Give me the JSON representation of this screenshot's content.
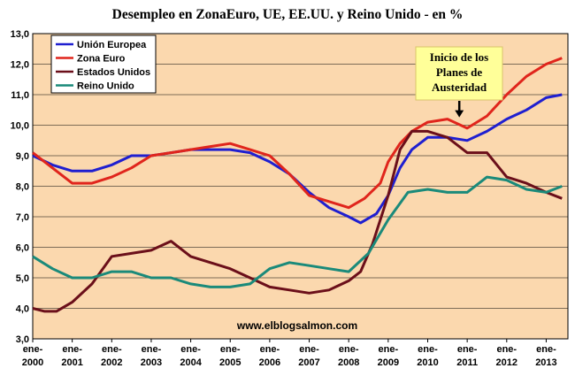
{
  "chart_data": {
    "type": "line",
    "title": "Desempleo en ZonaEuro, UE, EE.UU. y Reino Unido - en %",
    "xlabel": "",
    "ylabel": "",
    "ylim": [
      3.0,
      13.0
    ],
    "y_ticks": [
      "3,0",
      "4,0",
      "5,0",
      "6,0",
      "7,0",
      "8,0",
      "9,0",
      "10,0",
      "11,0",
      "12,0",
      "13,0"
    ],
    "x_ticks": [
      {
        "line1": "ene-",
        "line2": "2000"
      },
      {
        "line1": "ene-",
        "line2": "2001"
      },
      {
        "line1": "ene-",
        "line2": "2002"
      },
      {
        "line1": "ene-",
        "line2": "2003"
      },
      {
        "line1": "ene-",
        "line2": "2004"
      },
      {
        "line1": "ene-",
        "line2": "2005"
      },
      {
        "line1": "ene-",
        "line2": "2006"
      },
      {
        "line1": "ene-",
        "line2": "2007"
      },
      {
        "line1": "ene-",
        "line2": "2008"
      },
      {
        "line1": "ene-",
        "line2": "2009"
      },
      {
        "line1": "ene-",
        "line2": "2010"
      },
      {
        "line1": "ene-",
        "line2": "2011"
      },
      {
        "line1": "ene-",
        "line2": "2012"
      },
      {
        "line1": "ene-",
        "line2": "2013"
      }
    ],
    "grid": true,
    "legend_position": "top-left",
    "series": [
      {
        "name": "Unión Europea",
        "color": "#1f1fd0",
        "points": [
          [
            2000.0,
            9.0
          ],
          [
            2000.5,
            8.7
          ],
          [
            2001.0,
            8.5
          ],
          [
            2001.5,
            8.5
          ],
          [
            2002.0,
            8.7
          ],
          [
            2002.5,
            9.0
          ],
          [
            2003.0,
            9.0
          ],
          [
            2003.5,
            9.1
          ],
          [
            2004.0,
            9.2
          ],
          [
            2004.5,
            9.2
          ],
          [
            2005.0,
            9.2
          ],
          [
            2005.5,
            9.1
          ],
          [
            2006.0,
            8.8
          ],
          [
            2006.5,
            8.4
          ],
          [
            2007.0,
            7.8
          ],
          [
            2007.5,
            7.3
          ],
          [
            2008.0,
            7.0
          ],
          [
            2008.3,
            6.8
          ],
          [
            2008.7,
            7.1
          ],
          [
            2009.0,
            7.7
          ],
          [
            2009.3,
            8.6
          ],
          [
            2009.6,
            9.2
          ],
          [
            2010.0,
            9.6
          ],
          [
            2010.5,
            9.6
          ],
          [
            2011.0,
            9.5
          ],
          [
            2011.5,
            9.8
          ],
          [
            2012.0,
            10.2
          ],
          [
            2012.5,
            10.5
          ],
          [
            2013.0,
            10.9
          ],
          [
            2013.4,
            11.0
          ]
        ]
      },
      {
        "name": "Zona Euro",
        "color": "#e0251c",
        "points": [
          [
            2000.0,
            9.1
          ],
          [
            2000.5,
            8.6
          ],
          [
            2001.0,
            8.1
          ],
          [
            2001.5,
            8.1
          ],
          [
            2002.0,
            8.3
          ],
          [
            2002.5,
            8.6
          ],
          [
            2003.0,
            9.0
          ],
          [
            2003.5,
            9.1
          ],
          [
            2004.0,
            9.2
          ],
          [
            2004.5,
            9.3
          ],
          [
            2005.0,
            9.4
          ],
          [
            2005.5,
            9.2
          ],
          [
            2006.0,
            9.0
          ],
          [
            2006.5,
            8.4
          ],
          [
            2007.0,
            7.7
          ],
          [
            2007.5,
            7.5
          ],
          [
            2008.0,
            7.3
          ],
          [
            2008.4,
            7.6
          ],
          [
            2008.8,
            8.1
          ],
          [
            2009.0,
            8.8
          ],
          [
            2009.3,
            9.4
          ],
          [
            2009.6,
            9.8
          ],
          [
            2010.0,
            10.1
          ],
          [
            2010.5,
            10.2
          ],
          [
            2011.0,
            9.9
          ],
          [
            2011.5,
            10.3
          ],
          [
            2012.0,
            11.0
          ],
          [
            2012.5,
            11.6
          ],
          [
            2013.0,
            12.0
          ],
          [
            2013.4,
            12.2
          ]
        ]
      },
      {
        "name": "Estados Unidos",
        "color": "#6b0f1a",
        "points": [
          [
            2000.0,
            4.0
          ],
          [
            2000.3,
            3.9
          ],
          [
            2000.6,
            3.9
          ],
          [
            2001.0,
            4.2
          ],
          [
            2001.5,
            4.8
          ],
          [
            2002.0,
            5.7
          ],
          [
            2002.5,
            5.8
          ],
          [
            2003.0,
            5.9
          ],
          [
            2003.5,
            6.2
          ],
          [
            2004.0,
            5.7
          ],
          [
            2004.5,
            5.5
          ],
          [
            2005.0,
            5.3
          ],
          [
            2005.5,
            5.0
          ],
          [
            2006.0,
            4.7
          ],
          [
            2006.5,
            4.6
          ],
          [
            2007.0,
            4.5
          ],
          [
            2007.5,
            4.6
          ],
          [
            2008.0,
            4.9
          ],
          [
            2008.3,
            5.2
          ],
          [
            2008.6,
            6.1
          ],
          [
            2009.0,
            7.7
          ],
          [
            2009.3,
            9.2
          ],
          [
            2009.6,
            9.8
          ],
          [
            2010.0,
            9.8
          ],
          [
            2010.5,
            9.6
          ],
          [
            2011.0,
            9.1
          ],
          [
            2011.5,
            9.1
          ],
          [
            2012.0,
            8.3
          ],
          [
            2012.5,
            8.1
          ],
          [
            2013.0,
            7.8
          ],
          [
            2013.4,
            7.6
          ]
        ]
      },
      {
        "name": "Reino Unido",
        "color": "#1a8a7a",
        "points": [
          [
            2000.0,
            5.7
          ],
          [
            2000.5,
            5.3
          ],
          [
            2001.0,
            5.0
          ],
          [
            2001.5,
            5.0
          ],
          [
            2002.0,
            5.2
          ],
          [
            2002.5,
            5.2
          ],
          [
            2003.0,
            5.0
          ],
          [
            2003.5,
            5.0
          ],
          [
            2004.0,
            4.8
          ],
          [
            2004.5,
            4.7
          ],
          [
            2005.0,
            4.7
          ],
          [
            2005.5,
            4.8
          ],
          [
            2006.0,
            5.3
          ],
          [
            2006.5,
            5.5
          ],
          [
            2007.0,
            5.4
          ],
          [
            2007.5,
            5.3
          ],
          [
            2008.0,
            5.2
          ],
          [
            2008.5,
            5.8
          ],
          [
            2009.0,
            6.9
          ],
          [
            2009.5,
            7.8
          ],
          [
            2010.0,
            7.9
          ],
          [
            2010.5,
            7.8
          ],
          [
            2011.0,
            7.8
          ],
          [
            2011.5,
            8.3
          ],
          [
            2012.0,
            8.2
          ],
          [
            2012.5,
            7.9
          ],
          [
            2013.0,
            7.8
          ],
          [
            2013.4,
            8.0
          ]
        ]
      }
    ],
    "annotation": {
      "lines": [
        "Inicio de los",
        "Planes de",
        "Austeridad"
      ],
      "arrow_x": 2010.8,
      "arrow_y_from": 10.6,
      "arrow_y_to": 10.2,
      "box_color": "#ffff99"
    },
    "watermark": "www.elblogsalmon.com",
    "plot_background": "#fbd8ae"
  }
}
